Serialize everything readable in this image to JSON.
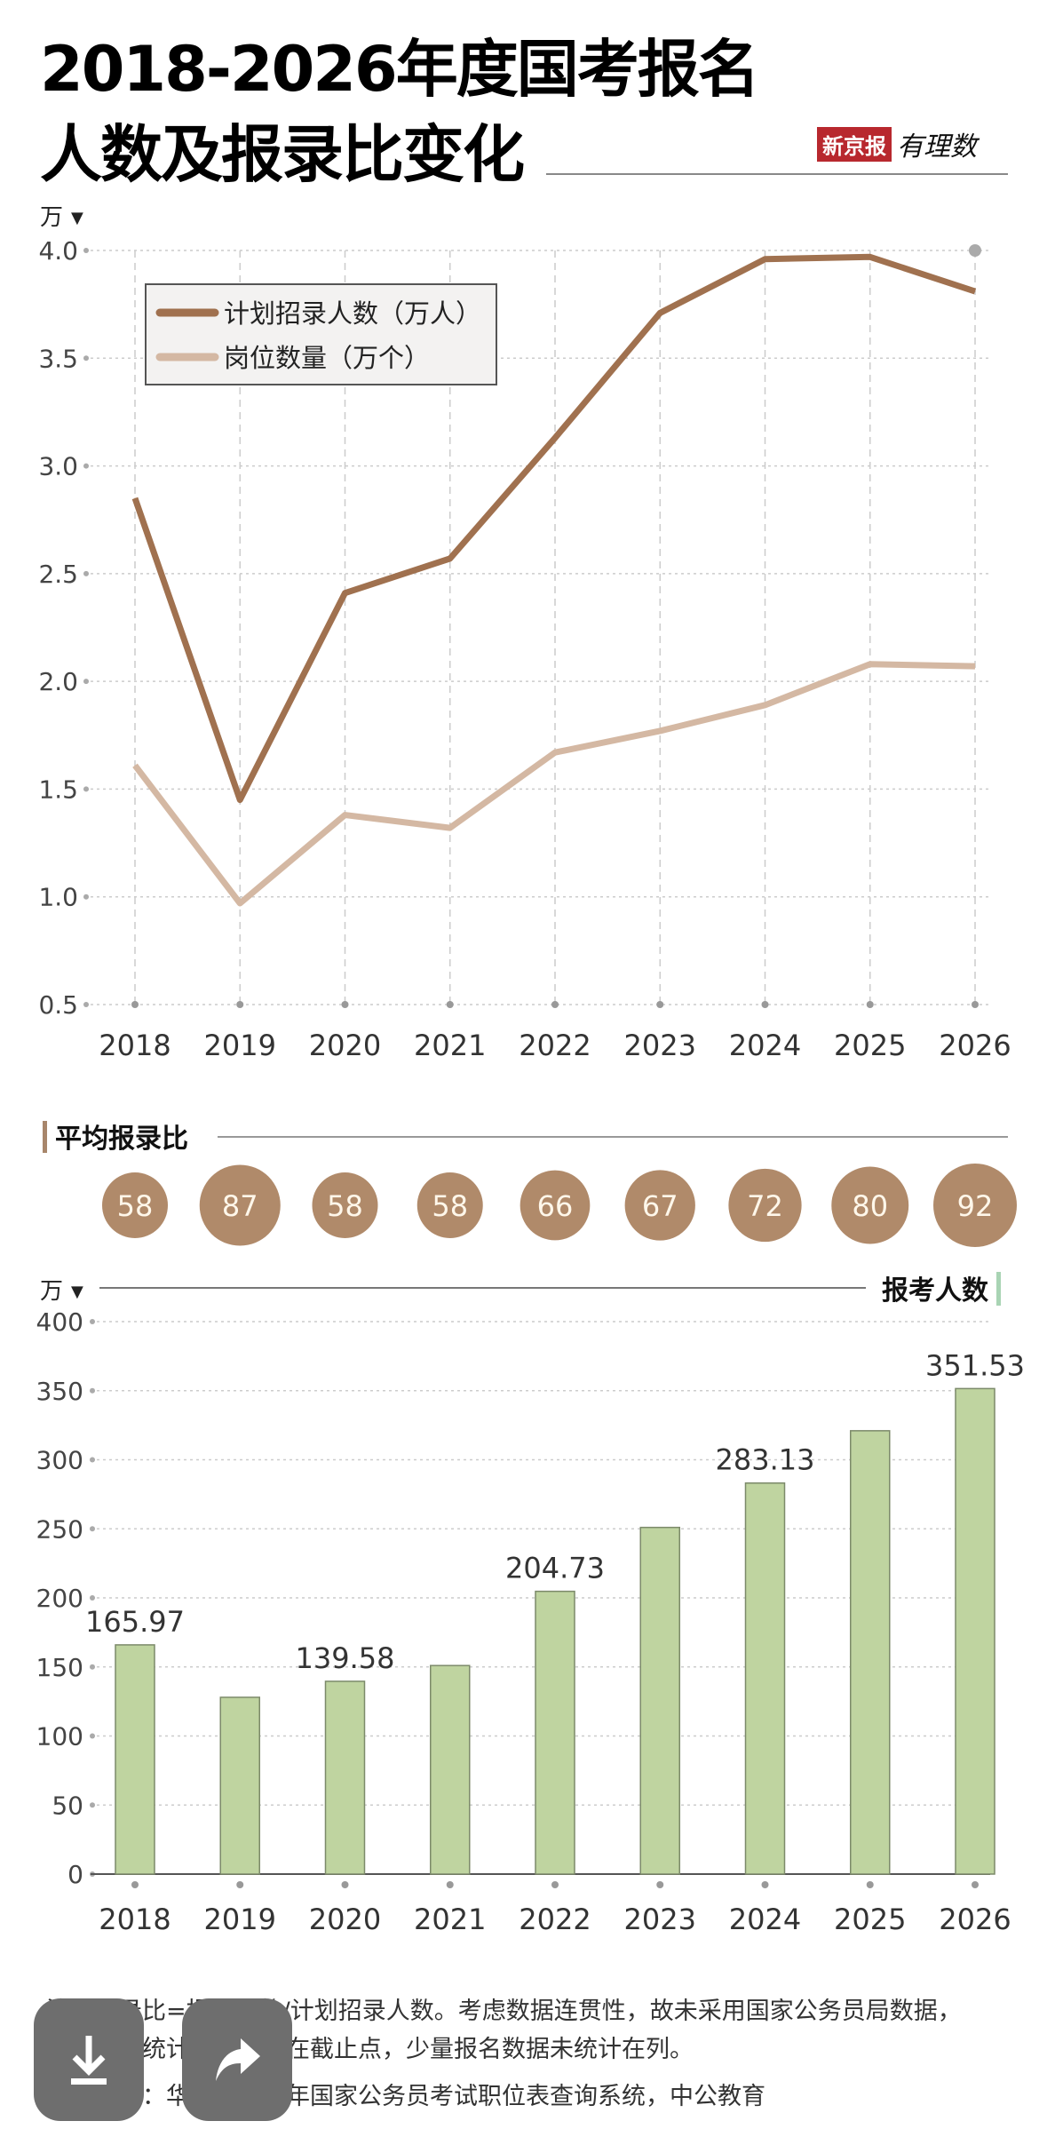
{
  "title": {
    "line1": "2018-2026年度国考报名",
    "line2": "人数及报录比变化"
  },
  "logo": {
    "brand": "新京报",
    "column": "有理数"
  },
  "colors": {
    "recruit": "#a0714f",
    "positions": "#d4b8a3",
    "ratio_circle": "#b08a6a",
    "bar": "#bfd4a0",
    "bar_border": "#7c8a6a",
    "header_bar": "#a8866b",
    "header_bar_green": "#a9d4b4"
  },
  "chart_data": [
    {
      "type": "line",
      "unit_label": "万",
      "categories": [
        "2018",
        "2019",
        "2020",
        "2021",
        "2022",
        "2023",
        "2024",
        "2025",
        "2026"
      ],
      "ylim": [
        0.5,
        4.0
      ],
      "yticks": [
        "4.0",
        "3.5",
        "3.0",
        "2.5",
        "2.0",
        "1.5",
        "1.0",
        "0.5"
      ],
      "grid": true,
      "legend_position": "top-left",
      "series": [
        {
          "name": "计划招录人数（万人）",
          "values": [
            2.85,
            1.45,
            2.41,
            2.57,
            3.13,
            3.71,
            3.96,
            3.97,
            3.81
          ]
        },
        {
          "name": "岗位数量（万个）",
          "values": [
            1.61,
            0.97,
            1.38,
            1.32,
            1.67,
            1.77,
            1.89,
            2.08,
            2.07
          ]
        }
      ]
    },
    {
      "type": "table",
      "title": "平均报录比",
      "categories": [
        "2018",
        "2019",
        "2020",
        "2021",
        "2022",
        "2023",
        "2024",
        "2025",
        "2026"
      ],
      "values": [
        "58",
        "87",
        "58",
        "58",
        "66",
        "67",
        "72",
        "80",
        "92"
      ]
    },
    {
      "type": "bar",
      "title": "报考人数",
      "unit_label": "万",
      "categories": [
        "2018",
        "2019",
        "2020",
        "2021",
        "2022",
        "2023",
        "2024",
        "2025",
        "2026"
      ],
      "values": [
        165.97,
        128,
        139.58,
        151,
        204.73,
        251,
        283.13,
        321,
        351.53
      ],
      "data_labels": [
        "165.97",
        "",
        "139.58",
        "",
        "204.73",
        "",
        "283.13",
        "",
        "351.53"
      ],
      "ylim": [
        0,
        400
      ],
      "yticks": [
        "400",
        "350",
        "300",
        "250",
        "200",
        "150",
        "100",
        "50",
        "0"
      ],
      "grid": true
    }
  ],
  "notes": {
    "line1": "注：报录比=报考人数/计划招录人数。考虑数据连贯性，故未采用国家公务员局数据，",
    "line2": "所以数据统计并不完全在截止点，少量报名数据未统计在列。",
    "source": "数据来源：华图教育历年国家公务员考试职位表查询系统，中公教育"
  },
  "overlay": {
    "download_icon": "download-icon",
    "share_icon": "share-icon"
  }
}
